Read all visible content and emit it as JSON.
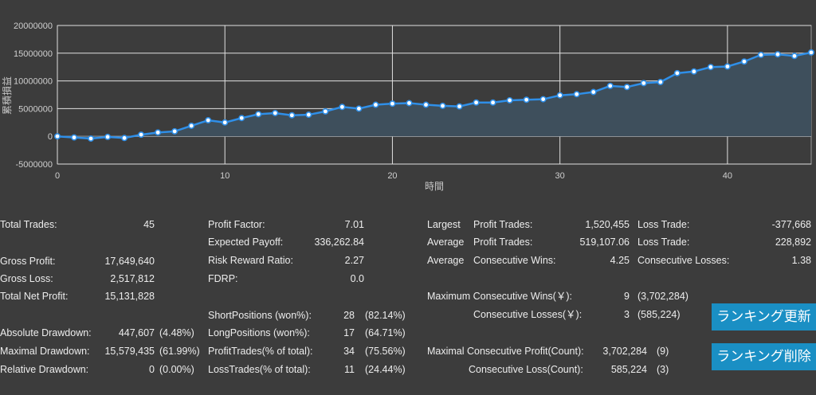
{
  "chart_data": {
    "type": "line",
    "ylabel": "累積損益",
    "xlabel": "時間",
    "ylim": [
      -5000000,
      20000000
    ],
    "xlim": [
      0,
      45
    ],
    "yticks": [
      "20000000",
      "15000000",
      "10000000",
      "5000000",
      "0",
      "-5000000"
    ],
    "xticks": [
      "0",
      "10",
      "20",
      "30",
      "40"
    ],
    "grid": true,
    "series": [
      {
        "x": [
          0,
          1,
          2,
          3,
          4,
          5,
          6,
          7,
          8,
          9,
          10,
          11,
          12,
          13,
          14,
          15,
          16,
          17,
          18,
          19,
          20,
          21,
          22,
          23,
          24,
          25,
          26,
          27,
          28,
          29,
          30,
          31,
          32,
          33,
          34,
          35,
          36,
          37,
          38,
          39,
          40,
          41,
          42,
          43,
          44,
          45
        ],
        "values": [
          0,
          -200000,
          -400000,
          -100000,
          -300000,
          300000,
          700000,
          900000,
          1900000,
          2900000,
          2500000,
          3300000,
          4000000,
          4200000,
          3800000,
          3900000,
          4500000,
          5300000,
          5000000,
          5700000,
          5900000,
          6000000,
          5700000,
          5500000,
          5400000,
          6100000,
          6100000,
          6500000,
          6600000,
          6700000,
          7400000,
          7600000,
          8000000,
          9100000,
          8900000,
          9600000,
          9800000,
          11400000,
          11700000,
          12500000,
          12600000,
          13500000,
          14700000,
          14800000,
          14500000,
          15131828
        ],
        "color": "#2f8fe8"
      }
    ]
  },
  "stats": {
    "col1": [
      {
        "label": "Total Trades:",
        "value": "45"
      },
      {
        "label": "Gross Profit:",
        "value": "17,649,640"
      },
      {
        "label": "Gross Loss:",
        "value": "2,517,812"
      },
      {
        "label": "Total Net Profit:",
        "value": "15,131,828"
      },
      {
        "label": "Absolute Drawdown:",
        "value": "447,607",
        "extra": "(4.48%)"
      },
      {
        "label": "Maximal Drawdown:",
        "value": "15,579,435",
        "extra": "(61.99%)"
      },
      {
        "label": "Relative Drawdown:",
        "value": "0",
        "extra": "(0.00%)"
      }
    ],
    "col2": [
      {
        "label": "Profit Factor:",
        "value": "7.01"
      },
      {
        "label": "Expected Payoff:",
        "value": "336,262.84"
      },
      {
        "label": "Risk Reward Ratio:",
        "value": "2.27"
      },
      {
        "label": "FDRP:",
        "value": "0.0"
      },
      {
        "label": "ShortPositions (won%):",
        "value": "28",
        "extra": "(82.14%)"
      },
      {
        "label": "LongPositions (won%):",
        "value": "17",
        "extra": "(64.71%)"
      },
      {
        "label": "ProfitTrades(% of total):",
        "value": "34",
        "extra": "(75.56%)"
      },
      {
        "label": "LossTrades(% of total):",
        "value": "11",
        "extra": "(24.44%)"
      }
    ],
    "col3": {
      "largest": {
        "prefix": "Largest",
        "label": "Profit Trades:",
        "value": "1,520,455",
        "label2": "Loss Trade:",
        "value2": "-377,668"
      },
      "average": {
        "prefix": "Average",
        "label": "Profit Trades:",
        "value": "519,107.06",
        "label2": "Loss Trade:",
        "value2": "228,892"
      },
      "average_cons": {
        "prefix": "Average",
        "label": "Consecutive Wins:",
        "value": "4.25",
        "label2": "Consecutive Losses:",
        "value2": "1.38"
      },
      "max_cons_wins": {
        "label": "Maximum Consecutive Wins(￥):",
        "value": "9",
        "extra": "(3,702,284)"
      },
      "cons_losses": {
        "label": "Consecutive Losses(￥):",
        "value": "3",
        "extra": "(585,224)"
      },
      "max_cons_profit": {
        "label": "Maximal Consecutive Profit(Count):",
        "value": "3,702,284",
        "extra": "(9)"
      },
      "cons_loss": {
        "label": "Consecutive Loss(Count):",
        "value": "585,224",
        "extra": "(3)"
      }
    }
  },
  "buttons": {
    "update": "ランキング更新",
    "delete": "ランキング削除"
  }
}
